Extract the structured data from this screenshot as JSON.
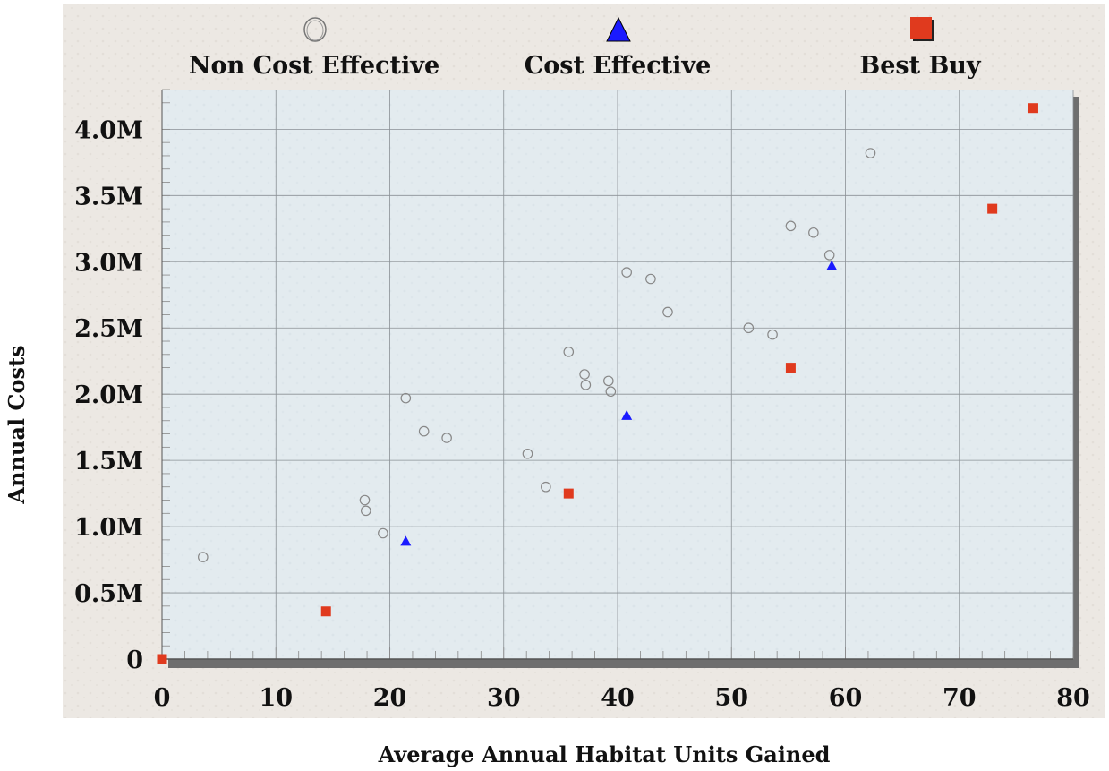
{
  "chart_data": {
    "type": "scatter",
    "xlabel": "Average Annual Habitat Units Gained",
    "ylabel": "Annual Costs",
    "xlim": [
      0,
      80
    ],
    "ylim": [
      0,
      4.3
    ],
    "x_ticks": [
      0,
      10,
      20,
      30,
      40,
      50,
      60,
      70,
      80
    ],
    "x_tick_labels": [
      "0",
      "10",
      "20",
      "30",
      "40",
      "50",
      "60",
      "70",
      "80"
    ],
    "y_ticks": [
      0,
      0.5,
      1.0,
      1.5,
      2.0,
      2.5,
      3.0,
      3.5,
      4.0
    ],
    "y_tick_labels": [
      "0",
      "0.5M",
      "1.0M",
      "1.5M",
      "2.0M",
      "2.5M",
      "3.0M",
      "3.5M",
      "4.0M"
    ],
    "y_unit": "millions",
    "grid": true,
    "legend_position": "top",
    "series": [
      {
        "name": "Non Cost Effective",
        "marker": "circle-open",
        "color": "#888888",
        "points": [
          {
            "x": 3.6,
            "y": 0.77
          },
          {
            "x": 17.8,
            "y": 1.2
          },
          {
            "x": 17.9,
            "y": 1.12
          },
          {
            "x": 19.4,
            "y": 0.95
          },
          {
            "x": 21.4,
            "y": 1.97
          },
          {
            "x": 23.0,
            "y": 1.72
          },
          {
            "x": 25.0,
            "y": 1.67
          },
          {
            "x": 32.1,
            "y": 1.55
          },
          {
            "x": 33.7,
            "y": 1.3
          },
          {
            "x": 35.7,
            "y": 2.32
          },
          {
            "x": 37.1,
            "y": 2.15
          },
          {
            "x": 37.2,
            "y": 2.07
          },
          {
            "x": 39.2,
            "y": 2.1
          },
          {
            "x": 39.4,
            "y": 2.02
          },
          {
            "x": 40.8,
            "y": 2.92
          },
          {
            "x": 42.9,
            "y": 2.87
          },
          {
            "x": 44.4,
            "y": 2.62
          },
          {
            "x": 51.5,
            "y": 2.5
          },
          {
            "x": 53.6,
            "y": 2.45
          },
          {
            "x": 55.2,
            "y": 3.27
          },
          {
            "x": 57.2,
            "y": 3.22
          },
          {
            "x": 58.6,
            "y": 3.05
          },
          {
            "x": 62.2,
            "y": 3.82
          }
        ]
      },
      {
        "name": "Cost Effective",
        "marker": "triangle",
        "color": "#1a1aff",
        "points": [
          {
            "x": 21.4,
            "y": 0.89
          },
          {
            "x": 40.8,
            "y": 1.84
          },
          {
            "x": 58.8,
            "y": 2.97
          }
        ]
      },
      {
        "name": "Best Buy",
        "marker": "square",
        "color": "#e03a1e",
        "points": [
          {
            "x": 0,
            "y": 0
          },
          {
            "x": 14.4,
            "y": 0.36
          },
          {
            "x": 35.7,
            "y": 1.25
          },
          {
            "x": 55.2,
            "y": 2.2
          },
          {
            "x": 72.9,
            "y": 3.4
          },
          {
            "x": 76.5,
            "y": 4.16
          }
        ]
      }
    ]
  }
}
